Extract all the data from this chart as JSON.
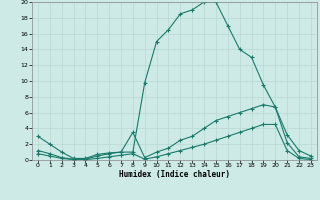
{
  "xlabel": "Humidex (Indice chaleur)",
  "background_color": "#cdeae6",
  "grid_color": "#b8d8d4",
  "line_color": "#1a7a6a",
  "xlim": [
    -0.5,
    23.5
  ],
  "ylim": [
    0,
    20
  ],
  "xticks": [
    0,
    1,
    2,
    3,
    4,
    5,
    6,
    7,
    8,
    9,
    10,
    11,
    12,
    13,
    14,
    15,
    16,
    17,
    18,
    19,
    20,
    21,
    22,
    23
  ],
  "yticks": [
    0,
    2,
    4,
    6,
    8,
    10,
    12,
    14,
    16,
    18,
    20
  ],
  "line1_x": [
    0,
    1,
    2,
    3,
    4,
    5,
    6,
    7,
    8,
    9,
    10,
    11,
    12,
    13,
    14,
    15,
    16,
    17,
    18,
    19,
    20,
    21,
    22,
    23
  ],
  "line1_y": [
    3.0,
    2.0,
    1.0,
    0.2,
    0.2,
    0.7,
    0.9,
    1.0,
    1.0,
    9.8,
    15.0,
    16.5,
    18.5,
    19.0,
    20.0,
    20.0,
    17.0,
    14.0,
    13.0,
    9.5,
    6.7,
    3.2,
    1.2,
    0.5
  ],
  "line2_x": [
    0,
    1,
    2,
    3,
    4,
    5,
    6,
    7,
    8,
    9,
    10,
    11,
    12,
    13,
    14,
    15,
    16,
    17,
    18,
    19,
    20,
    21,
    22,
    23
  ],
  "line2_y": [
    1.2,
    0.8,
    0.3,
    0.1,
    0.1,
    0.5,
    0.8,
    1.0,
    3.5,
    0.3,
    1.0,
    1.5,
    2.5,
    3.0,
    4.0,
    5.0,
    5.5,
    6.0,
    6.5,
    7.0,
    6.7,
    2.2,
    0.4,
    0.2
  ],
  "line3_x": [
    0,
    1,
    2,
    3,
    4,
    5,
    6,
    7,
    8,
    9,
    10,
    11,
    12,
    13,
    14,
    15,
    16,
    17,
    18,
    19,
    20,
    21,
    22,
    23
  ],
  "line3_y": [
    0.8,
    0.5,
    0.2,
    0.05,
    0.05,
    0.2,
    0.4,
    0.6,
    0.8,
    0.1,
    0.4,
    0.8,
    1.2,
    1.6,
    2.0,
    2.5,
    3.0,
    3.5,
    4.0,
    4.5,
    4.5,
    1.2,
    0.2,
    0.05
  ]
}
